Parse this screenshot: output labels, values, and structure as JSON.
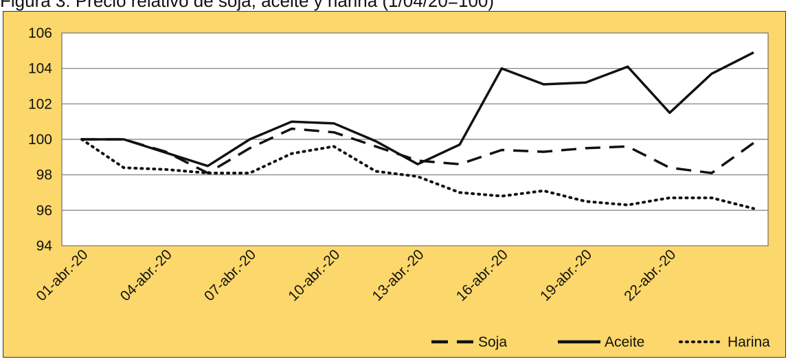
{
  "caption": "Figura 3: Precio relativo de soja, aceite y harina (1/04/20=100)",
  "chart_data": {
    "type": "line",
    "ylim": [
      94,
      106
    ],
    "yticks": [
      94,
      96,
      98,
      100,
      102,
      104,
      106
    ],
    "grid": true,
    "legend_position": "bottom-right",
    "x_tick_labels": [
      "01-abr.-20",
      "04-abr.-20",
      "07-abr.-20",
      "10-abr.-20",
      "13-abr.-20",
      "16-abr.-20",
      "19-abr.-20",
      "22-abr.-20"
    ],
    "x_tick_indices": [
      0,
      2,
      4,
      6,
      8,
      10,
      12,
      14
    ],
    "x_count": 17,
    "series": [
      {
        "name": "Soja",
        "style": "dashed",
        "color": "#111111",
        "points": [
          [
            0,
            100
          ],
          [
            1,
            100
          ],
          [
            2,
            99.3
          ],
          [
            3,
            98.1
          ],
          [
            4,
            99.5
          ],
          [
            5,
            100.6
          ],
          [
            6,
            100.4
          ],
          [
            7,
            99.6
          ],
          [
            8,
            98.8
          ],
          [
            9,
            98.6
          ],
          [
            10,
            99.4
          ],
          [
            11,
            99.3
          ],
          [
            12,
            99.5
          ],
          [
            13,
            99.6
          ],
          [
            14,
            98.4
          ],
          [
            15,
            98.1
          ],
          [
            16,
            99.8
          ]
        ]
      },
      {
        "name": "Aceite",
        "style": "solid",
        "color": "#111111",
        "points": [
          [
            0,
            100
          ],
          [
            1,
            100
          ],
          [
            3,
            98.5
          ],
          [
            4,
            100
          ],
          [
            5,
            101
          ],
          [
            6,
            100.9
          ],
          [
            7,
            99.9
          ],
          [
            8,
            98.6
          ],
          [
            9,
            99.7
          ],
          [
            10,
            104
          ],
          [
            11,
            103.1
          ],
          [
            12,
            103.2
          ],
          [
            13,
            104.1
          ],
          [
            14,
            101.5
          ],
          [
            15,
            103.7
          ],
          [
            16,
            104.9
          ]
        ]
      },
      {
        "name": "Harina",
        "style": "dotted",
        "color": "#111111",
        "points": [
          [
            0,
            100
          ],
          [
            1,
            98.4
          ],
          [
            2,
            98.3
          ],
          [
            3,
            98.1
          ],
          [
            4,
            98.1
          ],
          [
            5,
            99.2
          ],
          [
            6,
            99.6
          ],
          [
            7,
            98.2
          ],
          [
            8,
            97.9
          ],
          [
            9,
            97
          ],
          [
            10,
            96.8
          ],
          [
            11,
            97.1
          ],
          [
            12,
            96.5
          ],
          [
            13,
            96.3
          ],
          [
            14,
            96.7
          ],
          [
            15,
            96.7
          ],
          [
            16,
            96.1
          ]
        ]
      }
    ]
  }
}
